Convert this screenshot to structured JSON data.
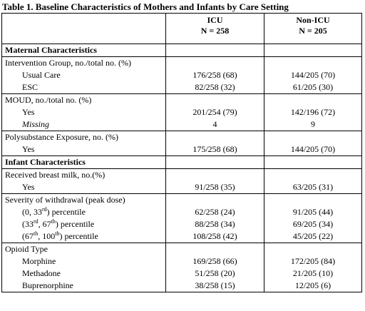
{
  "title": "Table 1. Baseline Characteristics of Mothers and Infants by Care Setting",
  "columns": [
    {
      "name": "ICU",
      "n": "N = 258"
    },
    {
      "name": "Non-ICU",
      "n": "N = 205"
    }
  ],
  "sections": [
    {
      "title": "Maternal Characteristics",
      "groups": [
        {
          "label": [
            "Intervention Group, no./total no. (%)"
          ],
          "rows": [
            {
              "label": [
                "Usual Care"
              ],
              "values": [
                "176/258 (68)",
                "144/205 (70)"
              ]
            },
            {
              "label": [
                "ESC"
              ],
              "values": [
                "82/258 (32)",
                "61/205 (30)"
              ]
            }
          ]
        },
        {
          "label": [
            "MOUD, no./total no. (%)"
          ],
          "rows": [
            {
              "label": [
                "Yes"
              ],
              "values": [
                "201/254 (79)",
                "142/196 (72)"
              ]
            },
            {
              "label": [
                "Missing"
              ],
              "italic": true,
              "values": [
                "4",
                "9"
              ]
            }
          ]
        },
        {
          "label": [
            "Polysubstance Exposure, no. (%)"
          ],
          "rows": [
            {
              "label": [
                "Yes"
              ],
              "values": [
                "175/258 (68)",
                "144/205 (70)"
              ]
            }
          ]
        }
      ]
    },
    {
      "title": "Infant Characteristics",
      "groups": [
        {
          "label": [
            "Received breast milk, no.(%)"
          ],
          "rows": [
            {
              "label": [
                "Yes"
              ],
              "values": [
                "91/258 (35)",
                "63/205 (31)"
              ]
            }
          ]
        },
        {
          "label": [
            "Severity of withdrawal (peak dose)"
          ],
          "rows": [
            {
              "label": [
                "(0, 33",
                "rd",
                ") percentile"
              ],
              "values": [
                "62/258 (24)",
                "91/205 (44)"
              ]
            },
            {
              "label": [
                "(33",
                "rd",
                ", 67",
                "th",
                ") percentile"
              ],
              "values": [
                "88/258 (34)",
                "69/205 (34)"
              ]
            },
            {
              "label": [
                "(67",
                "th",
                ", 100",
                "th",
                ") percentile"
              ],
              "values": [
                "108/258 (42)",
                "45/205 (22)"
              ]
            }
          ]
        },
        {
          "label": [
            "Opioid Type"
          ],
          "rows": [
            {
              "label": [
                "Morphine"
              ],
              "values": [
                "169/258 (66)",
                "172/205 (84)"
              ]
            },
            {
              "label": [
                "Methadone"
              ],
              "values": [
                "51/258 (20)",
                "21/205 (10)"
              ]
            },
            {
              "label": [
                "Buprenorphine"
              ],
              "values": [
                "38/258 (15)",
                "12/205 (6)"
              ]
            }
          ]
        }
      ]
    }
  ]
}
